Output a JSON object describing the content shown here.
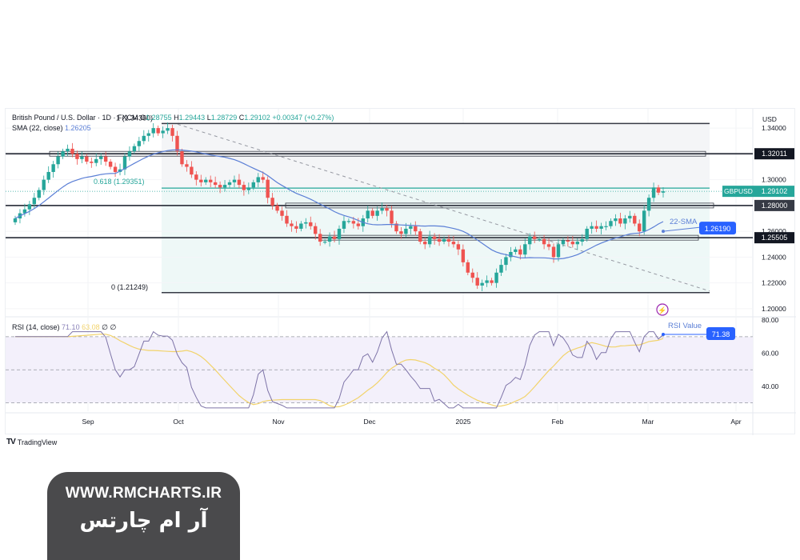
{
  "header": {
    "symbol_title": "British Pound / U.S. Dollar · 1D · FXCM",
    "ohlc": {
      "o_label": "O",
      "o": "1.28755",
      "h_label": "H",
      "h": "1.29443",
      "l_label": "L",
      "l": "1.28729",
      "c_label": "C",
      "c": "1.29102",
      "change": "+0.00347 (+0.27%)"
    },
    "sma_label": "SMA (22, close)",
    "sma_value": "1.26205",
    "rsi_label": "RSI (14, close)",
    "rsi_value": "71.10",
    "rsi_ma_value": "63.08",
    "rsi_extra1": "∅",
    "rsi_extra2": "∅"
  },
  "price_axis": {
    "currency": "USD",
    "ticks": [
      "1.34000",
      "1.32000",
      "1.30000",
      "1.28000",
      "1.26000",
      "1.24000",
      "1.22000",
      "1.20000"
    ]
  },
  "rsi_axis": {
    "ticks": [
      "80.00",
      "60.00",
      "40.00"
    ]
  },
  "time_axis": {
    "labels": [
      "Sep",
      "Oct",
      "Nov",
      "Dec",
      "2025",
      "Feb",
      "Mar",
      "Apr"
    ]
  },
  "annotations": {
    "fib_1": "1 (1.34360)",
    "fib_618": "0.618 (1.29351)",
    "fib_0": "0 (1.21249)",
    "sma_label": "22-SMA",
    "sma_badge": "1.26190",
    "rsi_label": "RSI Value",
    "rsi_badge": "71.38",
    "symbol_badge": "GBPUSD",
    "price_badge": "1.29102",
    "level_badges": [
      "1.32011",
      "1.28000",
      "1.25505"
    ]
  },
  "branding": {
    "tradingview": "TradingView",
    "watermark_url": "WWW.RMCHARTS.IR",
    "watermark_fa": "آر ام چارتس"
  },
  "colors": {
    "up": "#26a69a",
    "down": "#ef5350",
    "sma": "#5b7fd6",
    "rsi": "#7e74a8",
    "rsi_ma": "#f2d36b",
    "badge_blue": "#2962ff",
    "level_line": "#363a45"
  },
  "chart_data": [
    {
      "type": "candlestick",
      "title": "British Pound / U.S. Dollar · 1D · FXCM",
      "xlabel": "",
      "ylabel": "USD",
      "ylim": [
        1.195,
        1.35
      ],
      "x_ticks": [
        "Sep",
        "Oct",
        "Nov",
        "Dec",
        "2025",
        "Feb",
        "Mar",
        "Apr"
      ],
      "last": {
        "open": 1.28755,
        "high": 1.29443,
        "low": 1.28729,
        "close": 1.29102,
        "change": 0.00347,
        "change_pct": 0.27
      },
      "horizontal_levels": [
        1.3436,
        1.32011,
        1.29351,
        1.28,
        1.25505,
        1.21249
      ],
      "fibonacci": [
        {
          "level": 1,
          "price": 1.3436
        },
        {
          "level": 0.618,
          "price": 1.29351
        },
        {
          "level": 0,
          "price": 1.21249
        }
      ],
      "closes": [
        1.27,
        1.274,
        1.277,
        1.281,
        1.286,
        1.292,
        1.3,
        1.306,
        1.312,
        1.318,
        1.322,
        1.324,
        1.32,
        1.316,
        1.318,
        1.314,
        1.313,
        1.316,
        1.318,
        1.314,
        1.31,
        1.306,
        1.308,
        1.318,
        1.322,
        1.326,
        1.33,
        1.334,
        1.336,
        1.34,
        1.336,
        1.338,
        1.34,
        1.334,
        1.322,
        1.312,
        1.31,
        1.304,
        1.3,
        1.298,
        1.3,
        1.298,
        1.296,
        1.294,
        1.296,
        1.298,
        1.3,
        1.296,
        1.292,
        1.294,
        1.298,
        1.302,
        1.3,
        1.286,
        1.28,
        1.276,
        1.272,
        1.266,
        1.264,
        1.262,
        1.266,
        1.267,
        1.264,
        1.258,
        1.252,
        1.252,
        1.256,
        1.254,
        1.262,
        1.268,
        1.268,
        1.266,
        1.264,
        1.27,
        1.276,
        1.272,
        1.276,
        1.278,
        1.276,
        1.266,
        1.26,
        1.258,
        1.262,
        1.264,
        1.26,
        1.252,
        1.25,
        1.256,
        1.254,
        1.252,
        1.254,
        1.252,
        1.25,
        1.246,
        1.236,
        1.228,
        1.224,
        1.218,
        1.22,
        1.222,
        1.22,
        1.228,
        1.234,
        1.24,
        1.244,
        1.246,
        1.242,
        1.25,
        1.256,
        1.254,
        1.254,
        1.25,
        1.248,
        1.24,
        1.25,
        1.253,
        1.252,
        1.25,
        1.252,
        1.254,
        1.262,
        1.264,
        1.262,
        1.264,
        1.264,
        1.268,
        1.27,
        1.266,
        1.27,
        1.272,
        1.266,
        1.26,
        1.276,
        1.286,
        1.294,
        1.29,
        1.291
      ],
      "sma22": {
        "start": 1.268,
        "end": 1.262,
        "last_label": 1.2619
      },
      "series_indicator": {
        "name": "RSI (14, close)",
        "ylim": [
          25,
          82
        ],
        "levels": [
          70,
          50,
          30
        ],
        "rsi_last": 71.1,
        "rsi_ma_last": 63.08,
        "rsi_annotated": 71.38
      }
    }
  ]
}
